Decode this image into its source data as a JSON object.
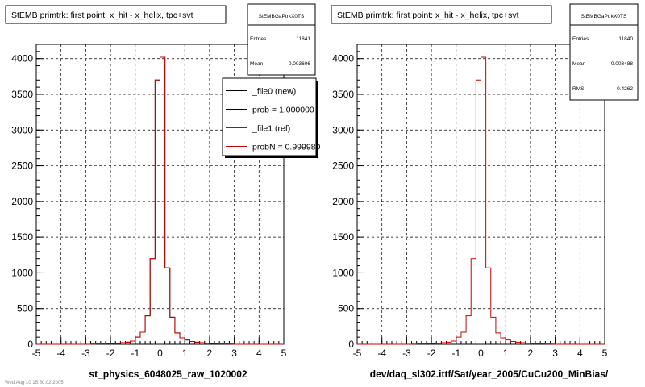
{
  "footer_text": "Wed Aug 10 15:50:02 2005",
  "chart_data": [
    {
      "type": "histogram",
      "title": "StEMB primtrk: first point: x_hit - x_helix, tpc+svt",
      "xlabel": "st_physics_6048025_raw_1020002",
      "ylabel": "",
      "xlim": [
        -5,
        5
      ],
      "ylim": [
        0,
        4200
      ],
      "grid": true,
      "xticks": [
        "-5",
        "-4",
        "-3",
        "-2",
        "-1",
        "0",
        "1",
        "2",
        "3",
        "4",
        "5"
      ],
      "yticks": [
        "0",
        "500",
        "1000",
        "1500",
        "2000",
        "2500",
        "3000",
        "3500",
        "4000"
      ],
      "bin_edges": [
        -2.8,
        -2.6,
        -2.4,
        -2.2,
        -2.0,
        -1.8,
        -1.6,
        -1.4,
        -1.2,
        -1.0,
        -0.8,
        -0.6,
        -0.4,
        -0.2,
        0.0,
        0.2,
        0.4,
        0.6,
        0.8,
        1.0,
        1.2,
        1.4,
        1.6,
        1.8,
        2.0,
        2.2,
        2.4,
        2.6,
        2.8,
        3.0
      ],
      "series": [
        {
          "name": "_file0 (new)",
          "color": "#000000",
          "values": [
            3,
            5,
            5,
            8,
            10,
            14,
            22,
            30,
            45,
            100,
            170,
            400,
            1200,
            3700,
            4020,
            1070,
            380,
            160,
            90,
            60,
            40,
            30,
            22,
            15,
            12,
            8,
            6,
            4,
            3
          ]
        },
        {
          "name": "_file1 (ref)",
          "color": "#cc0000",
          "values": [
            3,
            5,
            5,
            8,
            10,
            14,
            22,
            30,
            45,
            100,
            170,
            400,
            1200,
            3700,
            4020,
            1070,
            380,
            160,
            90,
            60,
            40,
            30,
            22,
            15,
            12,
            8,
            6,
            4,
            3
          ]
        }
      ],
      "stats": {
        "name": "StEMBGaPtrkX0TS",
        "rows": [
          {
            "label": "Entries",
            "value": "11841"
          },
          {
            "label": "Mean",
            "value": "-0.003606"
          }
        ]
      },
      "legend": [
        {
          "label": "_file0 (new)",
          "color": "#000000"
        },
        {
          "label": "prob = 1.000000",
          "color": "#000000"
        },
        {
          "label": "_file1 (ref)",
          "color": "#cc0000"
        },
        {
          "label": "probN = 0.999980",
          "color": "#cc0000"
        }
      ]
    },
    {
      "type": "histogram",
      "title": "StEMB primtrk: first point: x_hit - x_helix, tpc+svt",
      "xlabel": "dev/daq_sl302.ittf/Sat/year_2005/CuCu200_MinBias/",
      "ylabel": "",
      "xlim": [
        -5,
        5
      ],
      "ylim": [
        0,
        4200
      ],
      "grid": true,
      "xticks": [
        "-5",
        "-4",
        "-3",
        "-2",
        "-1",
        "0",
        "1",
        "2",
        "3",
        "4",
        "5"
      ],
      "yticks": [
        "0",
        "500",
        "1000",
        "1500",
        "2000",
        "2500",
        "3000",
        "3500",
        "4000"
      ],
      "bin_edges": [
        -2.8,
        -2.6,
        -2.4,
        -2.2,
        -2.0,
        -1.8,
        -1.6,
        -1.4,
        -1.2,
        -1.0,
        -0.8,
        -0.6,
        -0.4,
        -0.2,
        0.0,
        0.2,
        0.4,
        0.6,
        0.8,
        1.0,
        1.2,
        1.4,
        1.6,
        1.8,
        2.0,
        2.2,
        2.4,
        2.6,
        2.8,
        3.0
      ],
      "series": [
        {
          "color": "#cc0000",
          "values": [
            3,
            5,
            5,
            8,
            10,
            14,
            22,
            30,
            45,
            100,
            170,
            400,
            1200,
            3700,
            4020,
            1070,
            380,
            160,
            90,
            60,
            40,
            30,
            22,
            15,
            12,
            8,
            6,
            4,
            3
          ]
        }
      ],
      "stats": {
        "name": "StEMBGaPtrkX0TS",
        "rows": [
          {
            "label": "Entries",
            "value": "11840"
          },
          {
            "label": "Mean",
            "value": "-0.003488"
          },
          {
            "label": "RMS",
            "value": "0.4262"
          }
        ]
      },
      "legend": []
    }
  ]
}
